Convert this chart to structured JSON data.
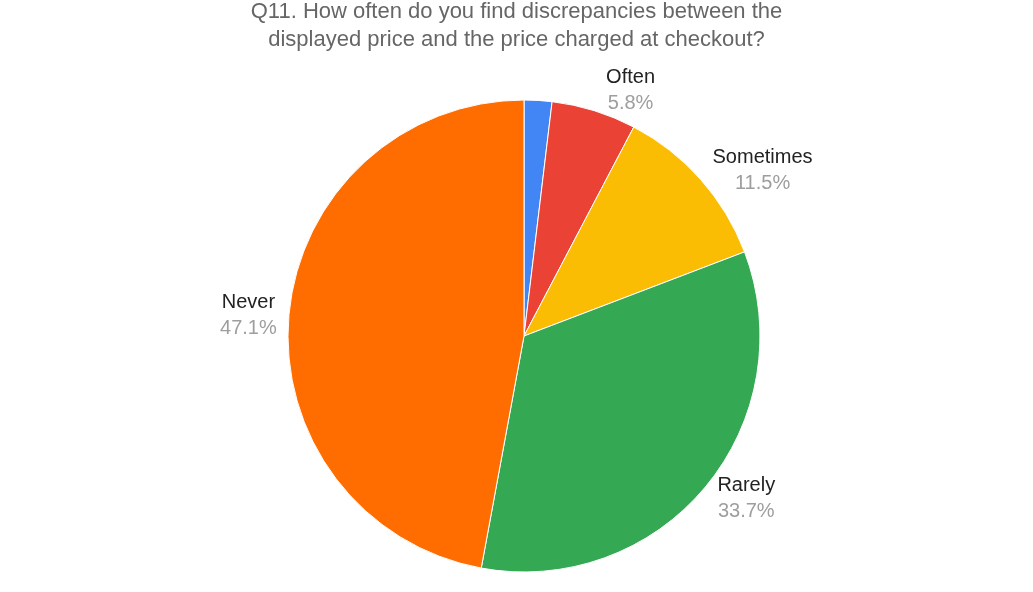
{
  "chart_data": {
    "type": "pie",
    "title": "Q11. How often do you find discrepancies between the displayed price and the price charged at checkout?",
    "categories": [
      null,
      "Often",
      "Sometimes",
      "Rarely",
      "Never"
    ],
    "values": [
      1.9,
      5.8,
      11.5,
      33.7,
      47.1
    ],
    "value_labels": [
      null,
      "5.8%",
      "11.5%",
      "33.7%",
      "47.1%"
    ],
    "colors": [
      "#4285f4",
      "#ea4335",
      "#fbbc04",
      "#34a853",
      "#ff6d01"
    ],
    "legend": false
  }
}
